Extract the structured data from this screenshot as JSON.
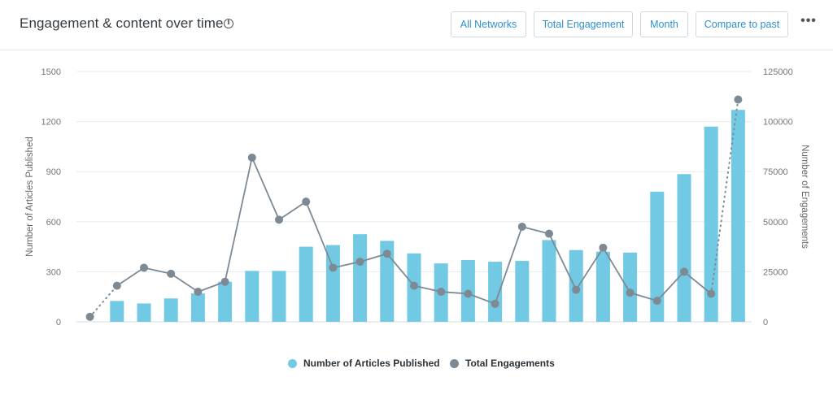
{
  "header": {
    "title": "Engagement & content over time",
    "info_icon": "info-circle-icon",
    "buttons": [
      "All Networks",
      "Total Engagement",
      "Month",
      "Compare to past"
    ],
    "more_icon": "more-horizontal-icon"
  },
  "colors": {
    "bar": "#72c9e3",
    "line": "#7d8a94",
    "grid": "#e8ebee",
    "button_text": "#2f8fd0"
  },
  "chart_data": {
    "type": "bar",
    "title": "Engagement & content over time",
    "y_left": {
      "label": "Number of Articles Published",
      "range": [
        0,
        1500
      ],
      "ticks": [
        "0",
        "300",
        "600",
        "900",
        "1200",
        "1500"
      ]
    },
    "y_right": {
      "label": "Number of Engagements",
      "range": [
        0,
        125000
      ],
      "ticks": [
        "0",
        "25000",
        "50000",
        "75000",
        "100000",
        "125000"
      ]
    },
    "grid": true,
    "legend_placement": "bottom",
    "series": [
      {
        "name": "Number of Articles Published",
        "type": "bar",
        "axis": "left",
        "values": [
          0,
          125,
          110,
          140,
          170,
          240,
          305,
          305,
          450,
          460,
          525,
          485,
          410,
          350,
          370,
          360,
          365,
          490,
          430,
          420,
          415,
          780,
          885,
          1170,
          1270
        ]
      },
      {
        "name": "Total Engagements",
        "type": "line",
        "axis": "right",
        "values": [
          2500,
          18000,
          27000,
          24000,
          15000,
          20000,
          82000,
          51000,
          60000,
          27000,
          30000,
          34000,
          18000,
          15000,
          14000,
          9000,
          47500,
          44000,
          16000,
          37000,
          14500,
          10500,
          25000,
          14000,
          111000
        ],
        "dotted_segments": [
          [
            0,
            1
          ],
          [
            23,
            24
          ]
        ]
      }
    ]
  }
}
